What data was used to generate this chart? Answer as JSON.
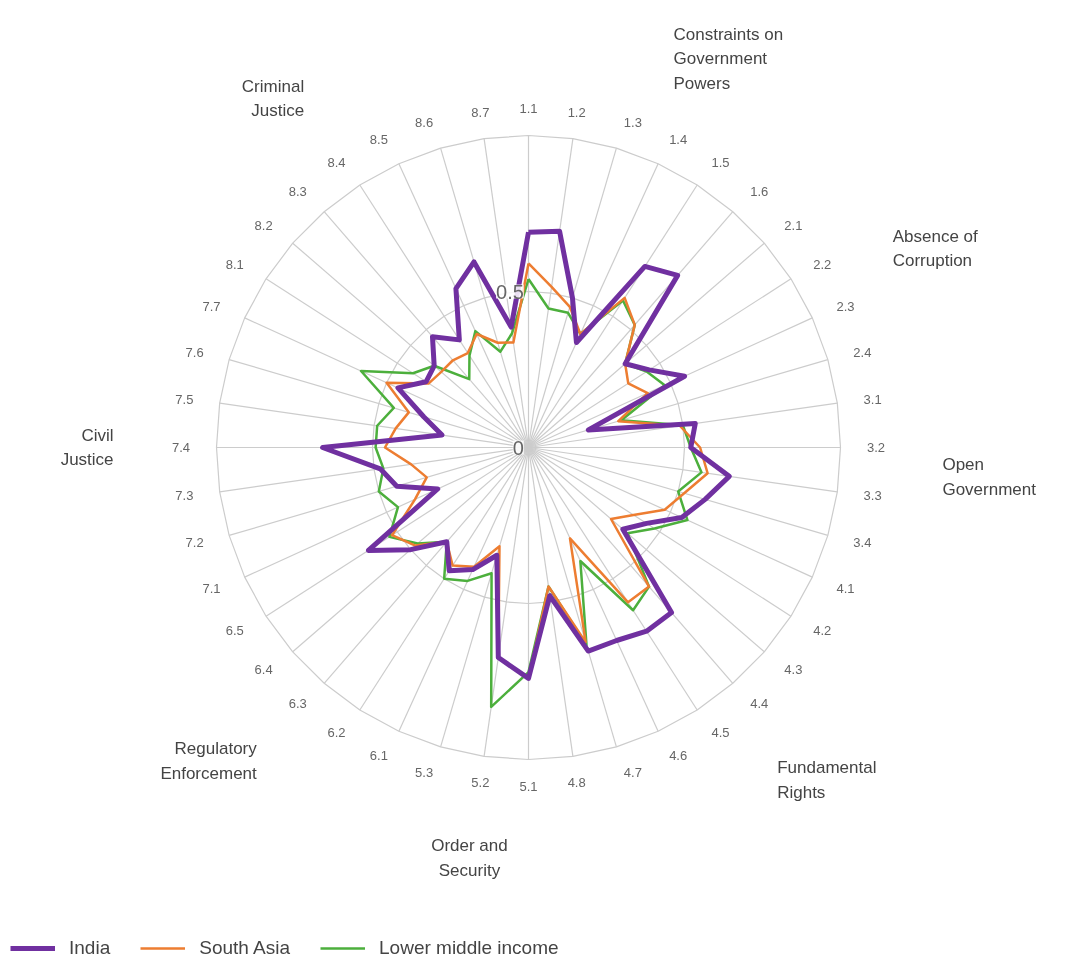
{
  "chart_data": {
    "type": "radar",
    "categories": [
      "1.1",
      "1.2",
      "1.3",
      "1.4",
      "1.5",
      "1.6",
      "2.1",
      "2.2",
      "2.3",
      "2.4",
      "3.1",
      "3.2",
      "3.3",
      "3.4",
      "4.1",
      "4.2",
      "4.3",
      "4.4",
      "4.5",
      "4.6",
      "4.7",
      "4.8",
      "5.1",
      "5.2",
      "5.3",
      "6.1",
      "6.2",
      "6.3",
      "6.4",
      "6.5",
      "7.1",
      "7.2",
      "7.3",
      "7.4",
      "7.5",
      "7.6",
      "7.7",
      "8.1",
      "8.2",
      "8.3",
      "8.4",
      "8.5",
      "8.6",
      "8.7"
    ],
    "series": [
      {
        "name": "India",
        "color": "#7030a0",
        "values": [
          0.69,
          0.7,
          0.5,
          0.37,
          0.69,
          0.73,
          0.41,
          0.46,
          0.55,
          0.2,
          0.54,
          0.52,
          0.65,
          0.59,
          0.54,
          0.45,
          0.4,
          0.7,
          0.7,
          0.68,
          0.68,
          0.48,
          0.74,
          0.68,
          0.36,
          0.43,
          0.47,
          0.4,
          0.5,
          0.61,
          0.32,
          0.44,
          0.48,
          0.66,
          0.28,
          0.35,
          0.46,
          0.39,
          0.4,
          0.47,
          0.41,
          0.56,
          0.62,
          0.39
        ]
      },
      {
        "name": "South Asia",
        "color": "#ed7d31",
        "values": [
          0.59,
          0.52,
          0.47,
          0.4,
          0.57,
          0.52,
          0.41,
          0.38,
          0.42,
          0.3,
          0.49,
          0.55,
          0.58,
          0.52,
          0.48,
          0.4,
          0.35,
          0.59,
          0.59,
          0.32,
          0.65,
          0.45,
          0.74,
          0.68,
          0.33,
          0.42,
          0.45,
          0.4,
          0.48,
          0.52,
          0.4,
          0.34,
          0.38,
          0.46,
          0.43,
          0.4,
          0.5,
          0.38,
          0.37,
          0.37,
          0.36,
          0.4,
          0.35,
          0.34
        ]
      },
      {
        "name": "Lower middle income",
        "color": "#4caf3c",
        "values": [
          0.54,
          0.45,
          0.45,
          0.4,
          0.56,
          0.52,
          0.41,
          0.45,
          0.48,
          0.31,
          0.5,
          0.52,
          0.56,
          0.5,
          0.56,
          0.48,
          0.42,
          0.59,
          0.62,
          0.4,
          0.66,
          0.45,
          0.72,
          0.84,
          0.42,
          0.47,
          0.5,
          0.4,
          0.47,
          0.53,
          0.46,
          0.5,
          0.47,
          0.49,
          0.49,
          0.45,
          0.59,
          0.44,
          0.4,
          0.29,
          0.35,
          0.41,
          0.32,
          0.37
        ]
      }
    ],
    "ylim": [
      0,
      1
    ],
    "yticks": [
      0,
      0.5
    ],
    "grid": true,
    "legend": "bottom left",
    "annotations": [
      "Constraints on Government Powers",
      "Absence of Corruption",
      "Open Government",
      "Fundamental Rights",
      "Order and Security",
      "Regulatory Enforcement",
      "Civil Justice",
      "Criminal Justice"
    ]
  }
}
